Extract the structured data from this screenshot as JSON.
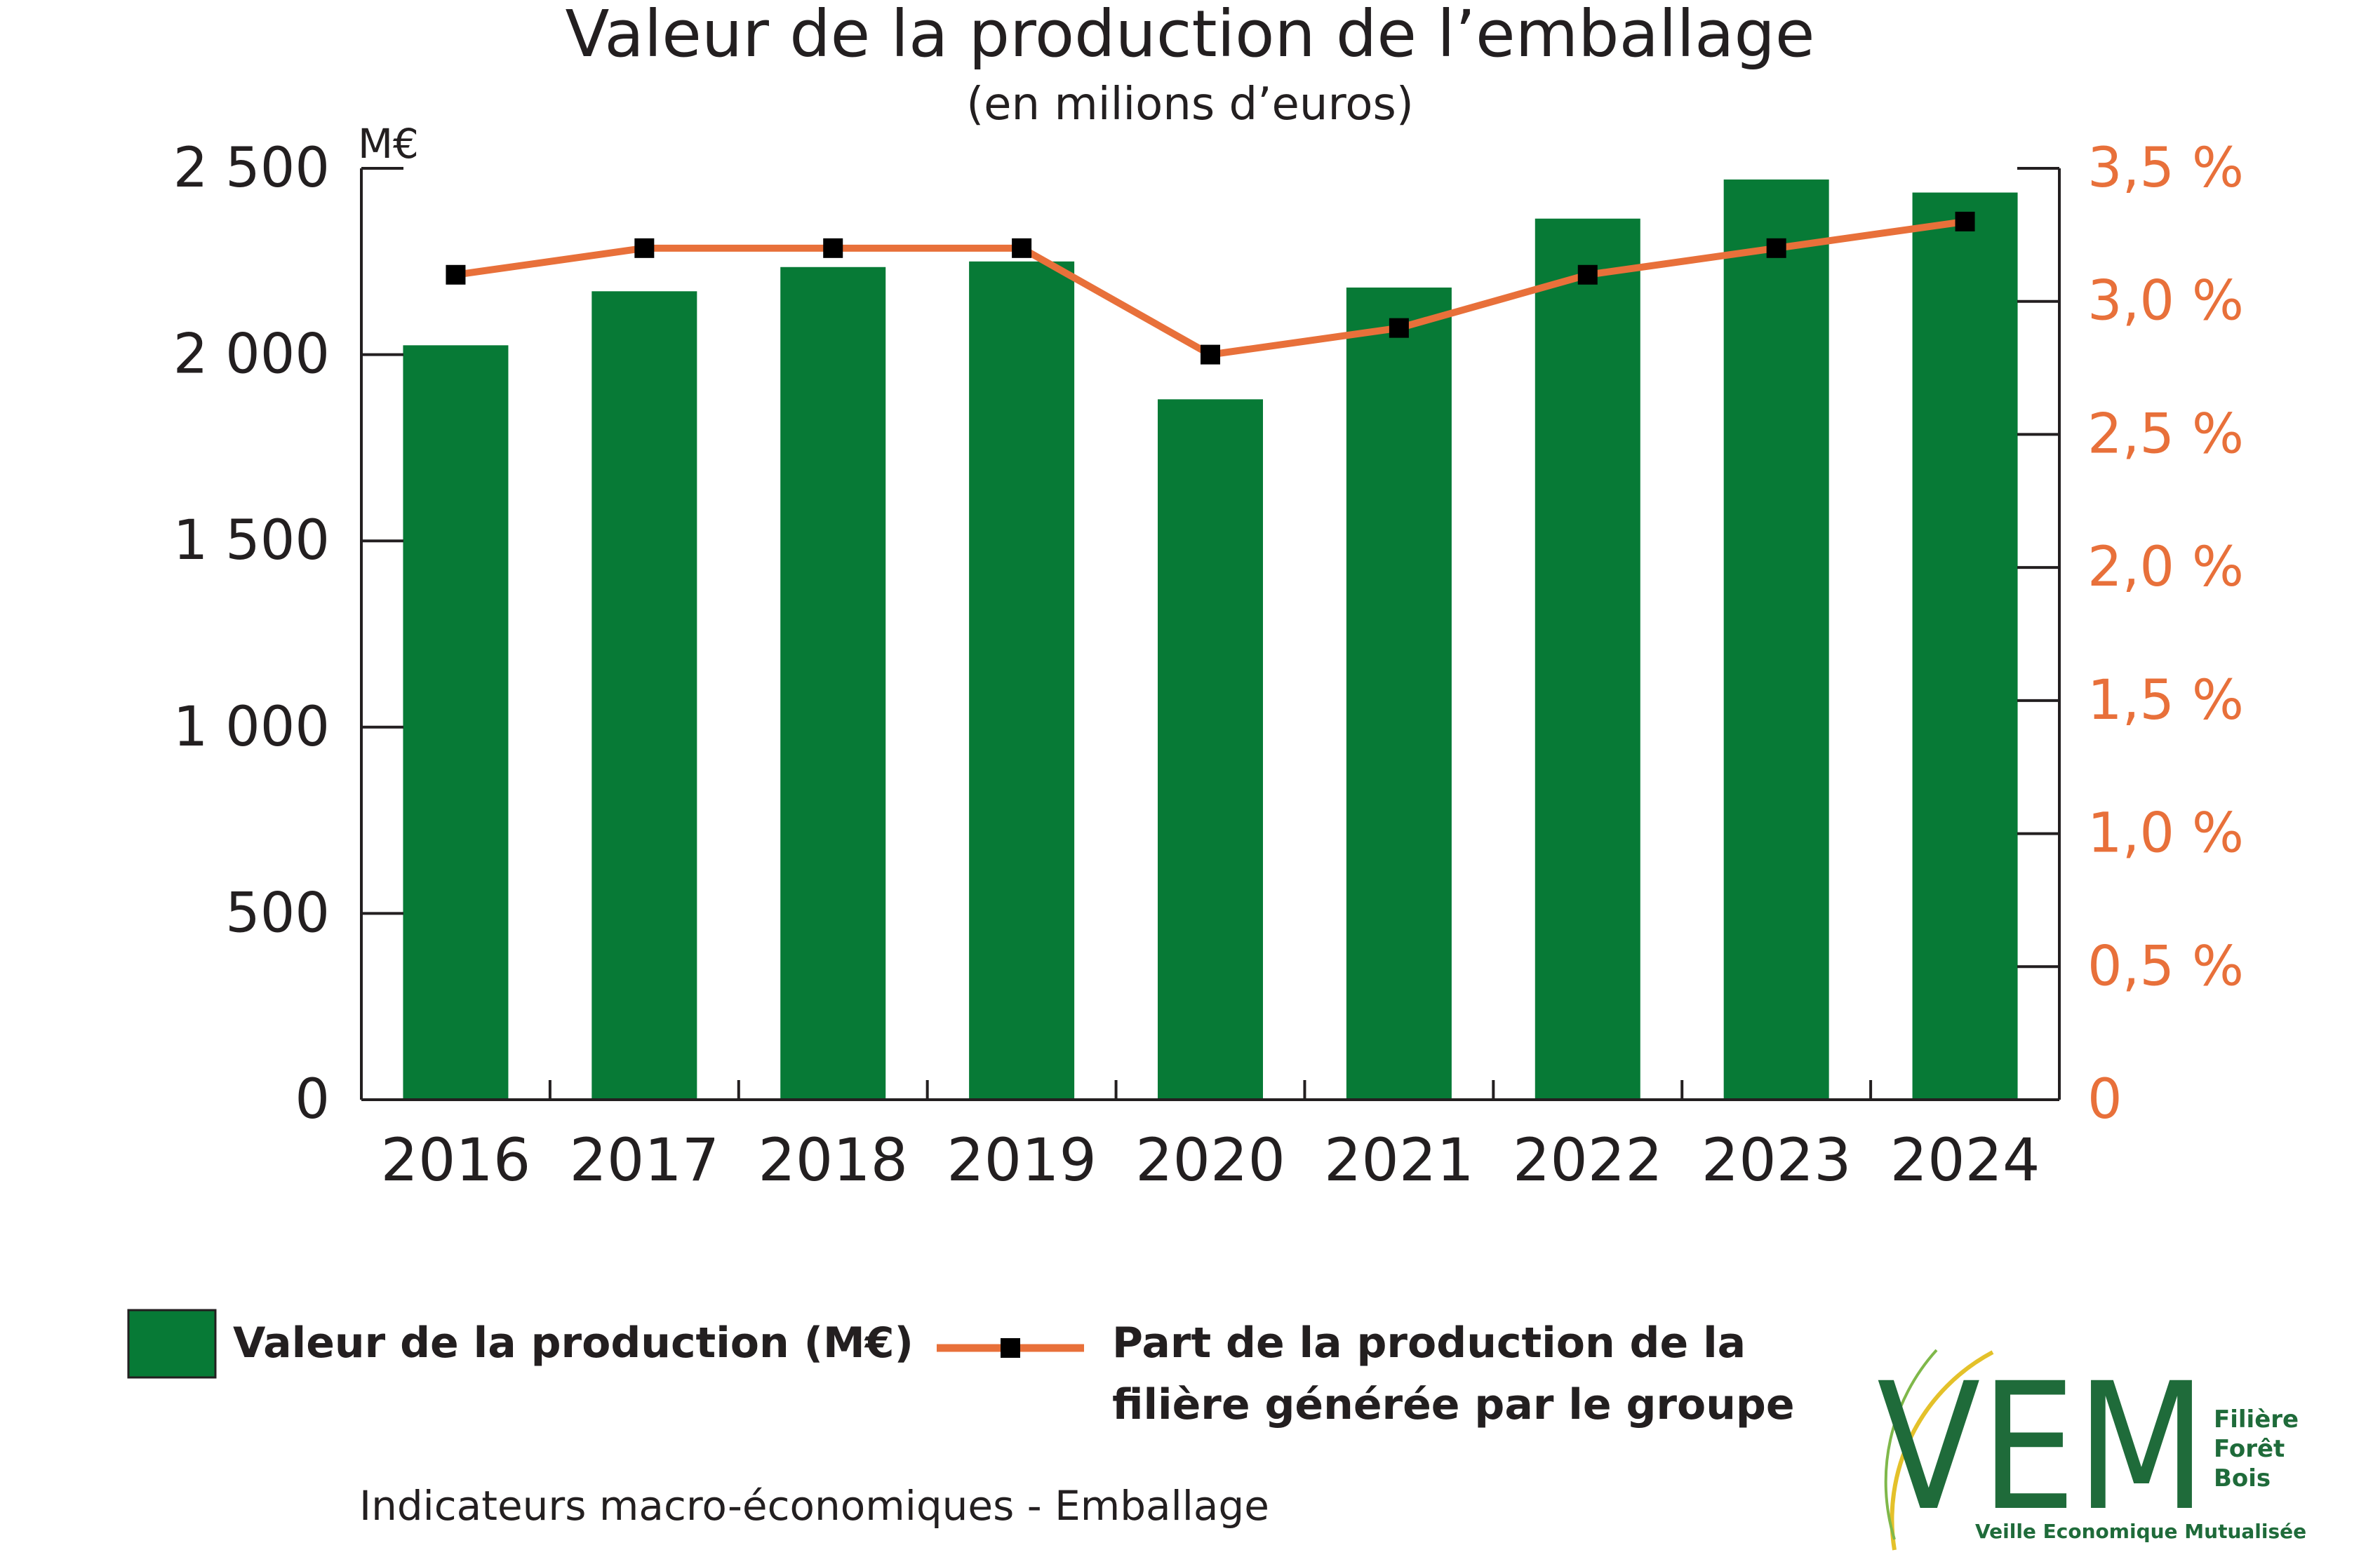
{
  "colors": {
    "bar": "#077a36",
    "line": "#e8703a",
    "marker": "#000000",
    "axis": "#231f20",
    "right_axis_text": "#e8703a",
    "logo_green": "#1f6b3a",
    "logo_yellow": "#e4c12a"
  },
  "chart_data": {
    "type": "bar",
    "title": "Valeur de la production de l’emballage",
    "subtitle": "(en milions d’euros)",
    "unit_label": "M€",
    "categories": [
      "2016",
      "2017",
      "2018",
      "2019",
      "2020",
      "2021",
      "2022",
      "2023",
      "2024"
    ],
    "series": [
      {
        "name": "Valeur de la production (M€)",
        "type": "bar",
        "axis": "left",
        "values": [
          2025,
          2170,
          2235,
          2250,
          1880,
          2180,
          2365,
          2470,
          2435
        ]
      },
      {
        "name": "Part de la production de la filière générée par le groupe",
        "type": "line",
        "axis": "right",
        "values": [
          3.1,
          3.2,
          3.2,
          3.2,
          2.8,
          2.9,
          3.1,
          3.2,
          3.3
        ]
      }
    ],
    "ylim": [
      0,
      2500
    ],
    "y2lim": [
      0,
      3.5
    ],
    "yticks": [
      "0",
      "500",
      "1 000",
      "1 500",
      "2 000",
      "2 500"
    ],
    "ytick_values": [
      0,
      500,
      1000,
      1500,
      2000,
      2500
    ],
    "y2ticks": [
      "0",
      "0,5 %",
      "1,0 %",
      "1,5 %",
      "2,0 %",
      "2,5 %",
      "3,0 %",
      "3,5 %"
    ],
    "y2tick_values": [
      0,
      0.5,
      1.0,
      1.5,
      2.0,
      2.5,
      3.0,
      3.5
    ],
    "grid": false,
    "legend_position": "bottom"
  },
  "legend": {
    "bar_label": "Valeur de la production (M€)",
    "line_label_1": "Part de la production de la",
    "line_label_2": "filière générée par le groupe"
  },
  "footer": {
    "text": "Indicateurs macro-économiques - Emballage"
  },
  "logo": {
    "letters": "VEM",
    "line1": "Filière",
    "line2": "Forêt",
    "line3": "Bois",
    "tagline": "Veille Economique Mutualisée"
  }
}
